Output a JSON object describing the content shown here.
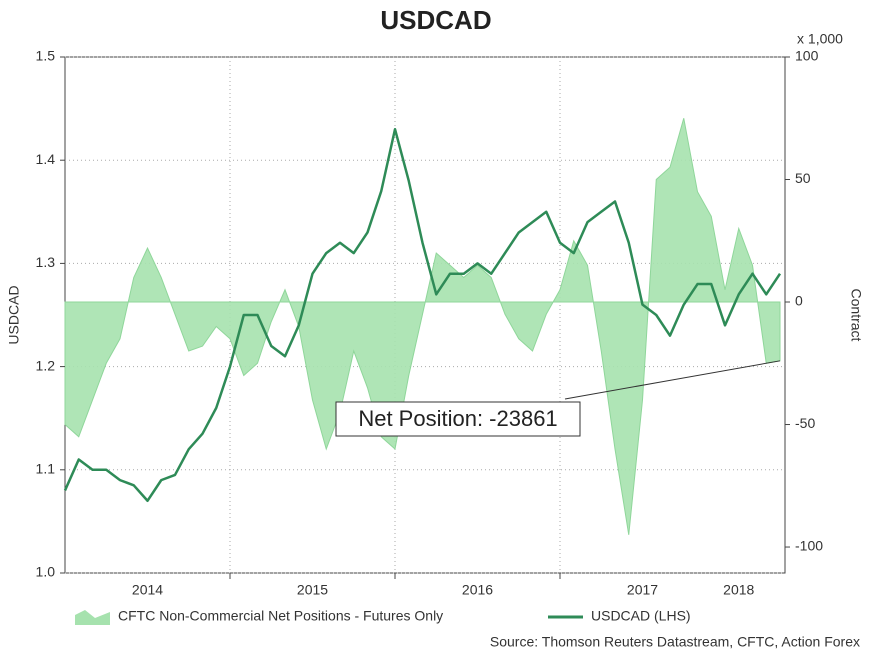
{
  "chart_data": {
    "type": "line",
    "title": "USDCAD",
    "y2_unit": "x 1,000",
    "ylabel": "USDCAD",
    "y2label": "Contract",
    "categories": [
      null,
      null,
      null,
      null,
      null,
      null,
      "2014",
      null,
      null,
      null,
      null,
      null,
      null,
      null,
      null,
      null,
      null,
      null,
      "2015",
      null,
      null,
      null,
      null,
      null,
      null,
      null,
      null,
      null,
      null,
      null,
      "2016",
      null,
      null,
      null,
      null,
      null,
      null,
      null,
      null,
      null,
      null,
      null,
      "2017",
      null,
      null,
      null,
      null,
      null,
      null,
      "2018",
      null,
      null,
      null
    ],
    "series": [
      {
        "name": "CFTC Non-Commercial Net Positions - Futures Only",
        "type": "area",
        "axis": "y2",
        "color": "#a6e2ae",
        "values": [
          -50,
          -55,
          -40,
          -25,
          -15,
          10,
          22,
          10,
          -5,
          -20,
          -18,
          -10,
          -15,
          -30,
          -25,
          -8,
          5,
          -10,
          -40,
          -60,
          -45,
          -20,
          -35,
          -55,
          -60,
          -30,
          -5,
          20,
          15,
          10,
          15,
          10,
          -5,
          -15,
          -20,
          -5,
          5,
          25,
          15,
          -20,
          -60,
          -95,
          -40,
          50,
          55,
          75,
          45,
          35,
          5,
          30,
          15,
          -25,
          -24
        ]
      },
      {
        "name": "USDCAD (LHS)",
        "type": "line",
        "axis": "y",
        "color": "#2e8b57",
        "values": [
          1.08,
          1.11,
          1.1,
          1.1,
          1.09,
          1.085,
          1.07,
          1.09,
          1.095,
          1.12,
          1.135,
          1.16,
          1.2,
          1.25,
          1.25,
          1.22,
          1.21,
          1.24,
          1.29,
          1.31,
          1.32,
          1.31,
          1.33,
          1.37,
          1.43,
          1.38,
          1.32,
          1.27,
          1.29,
          1.29,
          1.3,
          1.29,
          1.31,
          1.33,
          1.34,
          1.35,
          1.32,
          1.31,
          1.34,
          1.35,
          1.36,
          1.32,
          1.26,
          1.25,
          1.23,
          1.26,
          1.28,
          1.28,
          1.24,
          1.27,
          1.29,
          1.27,
          1.29
        ]
      }
    ],
    "ylim": [
      1.0,
      1.5
    ],
    "yticks": [
      {
        "value": 1,
        "label": "1.0"
      },
      1.1,
      1.2,
      1.3,
      1.4,
      1.5
    ],
    "y2lim": [
      -110.6,
      100
    ],
    "y2ticks": [
      100,
      50,
      0,
      -50,
      -100
    ],
    "grid": true,
    "annotation": "Net Position: -23861",
    "source": "Source: Thomson Reuters Datastream, CFTC, Action Forex"
  }
}
